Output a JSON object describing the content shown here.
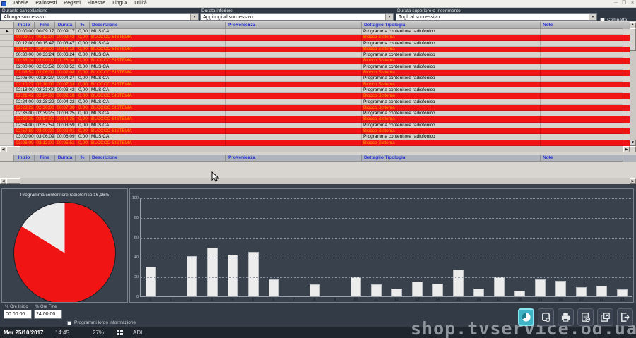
{
  "window": {
    "menu": [
      "Tabelle",
      "Palinsesti",
      "Registri",
      "Finestre",
      "Lingua",
      "Utilità"
    ],
    "controls": {
      "minimize": "─",
      "restore": "❐",
      "close": "✕"
    }
  },
  "toolbar": {
    "groups": [
      {
        "label": "Durante cancellazione",
        "value": "Allunga successivo"
      },
      {
        "label": "Durata inferiore",
        "value": "Aggiungi al successivo"
      },
      {
        "label": "Durata superiore o Inserimento",
        "value": "Togli al successivo"
      }
    ],
    "compatta_righe_label": "Compatta righe"
  },
  "main_table": {
    "headers": [
      "Inizio",
      "Fine",
      "Durata",
      "%",
      "Descrizione",
      "Provenienza",
      "Dettaglio Tipologia",
      "Note"
    ],
    "rows": [
      {
        "type": "musica",
        "inizio": "00:00:00",
        "fine": "00:09:17",
        "durata": "00:09:17",
        "pct": "0,00",
        "descrizione": "MUSICA",
        "provenienza": "",
        "dettaglio": "Programma contenitore radiofonico",
        "note": ""
      },
      {
        "type": "blocco",
        "inizio": "00:09:17",
        "fine": "00:12:00",
        "durata": "00:02:43",
        "pct": "0,00",
        "descrizione": "BLOCCO SISTEMA",
        "provenienza": "",
        "dettaglio": "Blocco Sistema",
        "note": ""
      },
      {
        "type": "musica",
        "inizio": "00:12:00",
        "fine": "00:15:47",
        "durata": "00:03:47",
        "pct": "0,00",
        "descrizione": "MUSICA",
        "provenienza": "",
        "dettaglio": "Programma contenitore radiofonico",
        "note": ""
      },
      {
        "type": "blocco",
        "inizio": "00:15:47",
        "fine": "00:30:00",
        "durata": "00:14:13",
        "pct": "0,00",
        "descrizione": "BLOCCO SISTEMA",
        "provenienza": "",
        "dettaglio": "Blocco Sistema",
        "note": ""
      },
      {
        "type": "musica",
        "inizio": "00:30:00",
        "fine": "00:33:24",
        "durata": "00:03:24",
        "pct": "0,00",
        "descrizione": "MUSICA",
        "provenienza": "",
        "dettaglio": "Programma contenitore radiofonico",
        "note": ""
      },
      {
        "type": "blocco",
        "inizio": "00:33:24",
        "fine": "02:00:00",
        "durata": "01:26:36",
        "pct": "0,00",
        "descrizione": "BLOCCO SISTEMA",
        "provenienza": "",
        "dettaglio": "Blocco Sistema",
        "note": ""
      },
      {
        "type": "musica",
        "inizio": "02:00:00",
        "fine": "02:03:52",
        "durata": "00:03:52",
        "pct": "0,00",
        "descrizione": "MUSICA",
        "provenienza": "",
        "dettaglio": "Programma contenitore radiofonico",
        "note": ""
      },
      {
        "type": "blocco",
        "inizio": "02:03:52",
        "fine": "02:06:00",
        "durata": "00:02:08",
        "pct": "0,00",
        "descrizione": "BLOCCO SISTEMA",
        "provenienza": "",
        "dettaglio": "Blocco Sistema",
        "note": ""
      },
      {
        "type": "musica",
        "inizio": "02:06:00",
        "fine": "02:10:27",
        "durata": "00:04:27",
        "pct": "0,00",
        "descrizione": "MUSICA",
        "provenienza": "",
        "dettaglio": "Programma contenitore radiofonico",
        "note": ""
      },
      {
        "type": "blocco",
        "inizio": "02:10:27",
        "fine": "02:18:00",
        "durata": "00:07:33",
        "pct": "0,00",
        "descrizione": "BLOCCO SISTEMA",
        "provenienza": "",
        "dettaglio": "Blocco Sistema",
        "note": ""
      },
      {
        "type": "musica",
        "inizio": "02:18:00",
        "fine": "02:21:42",
        "durata": "00:03:42",
        "pct": "0,00",
        "descrizione": "MUSICA",
        "provenienza": "",
        "dettaglio": "Programma contenitore radiofonico",
        "note": ""
      },
      {
        "type": "blocco",
        "inizio": "02:21:42",
        "fine": "02:24:00",
        "durata": "00:02:18",
        "pct": "0,00",
        "descrizione": "BLOCCO SISTEMA",
        "provenienza": "",
        "dettaglio": "Blocco Sistema",
        "note": ""
      },
      {
        "type": "musica",
        "inizio": "02:24:00",
        "fine": "02:28:22",
        "durata": "00:04:22",
        "pct": "0,00",
        "descrizione": "MUSICA",
        "provenienza": "",
        "dettaglio": "Programma contenitore radiofonico",
        "note": ""
      },
      {
        "type": "blocco",
        "inizio": "02:28:22",
        "fine": "02:36:00",
        "durata": "00:07:38",
        "pct": "0,00",
        "descrizione": "BLOCCO SISTEMA",
        "provenienza": "",
        "dettaglio": "Blocco Sistema",
        "note": ""
      },
      {
        "type": "musica",
        "inizio": "02:36:00",
        "fine": "02:39:25",
        "durata": "00:03:25",
        "pct": "0,00",
        "descrizione": "MUSICA",
        "provenienza": "",
        "dettaglio": "Programma contenitore radiofonico",
        "note": ""
      },
      {
        "type": "blocco",
        "inizio": "02:39:25",
        "fine": "02:54:00",
        "durata": "00:14:35",
        "pct": "0,00",
        "descrizione": "BLOCCO SISTEMA",
        "provenienza": "",
        "dettaglio": "Blocco Sistema",
        "note": ""
      },
      {
        "type": "musica",
        "inizio": "02:54:00",
        "fine": "02:57:59",
        "durata": "00:03:59",
        "pct": "0,00",
        "descrizione": "MUSICA",
        "provenienza": "",
        "dettaglio": "Programma contenitore radiofonico",
        "note": ""
      },
      {
        "type": "blocco",
        "inizio": "02:57:59",
        "fine": "03:00:00",
        "durata": "00:02:01",
        "pct": "0,00",
        "descrizione": "BLOCCO SISTEMA",
        "provenienza": "",
        "dettaglio": "Blocco Sistema",
        "note": ""
      },
      {
        "type": "musica",
        "inizio": "03:00:00",
        "fine": "03:06:09",
        "durata": "00:06:09",
        "pct": "0,00",
        "descrizione": "MUSICA",
        "provenienza": "",
        "dettaglio": "Programma contenitore radiofonico",
        "note": ""
      },
      {
        "type": "blocco",
        "inizio": "03:06:09",
        "fine": "03:12:00",
        "durata": "00:05:51",
        "pct": "0,00",
        "descrizione": "BLOCCO SISTEMA",
        "provenienza": "",
        "dettaglio": "Blocco Sistema",
        "note": ""
      }
    ]
  },
  "chart_data": [
    {
      "type": "pie",
      "title": "Programma contenitore radiofonico 16,16%",
      "slices": [
        {
          "label": "Blocco Sistema",
          "value": 83.84,
          "color": "#f01414"
        },
        {
          "label": "Programma contenitore radiofonico",
          "value": 16.16,
          "color": "#ececec"
        }
      ],
      "legend_position": "none"
    },
    {
      "type": "bar",
      "categories": [
        0,
        1,
        2,
        3,
        4,
        5,
        6,
        7,
        8,
        9,
        10,
        11,
        12,
        13,
        14,
        15,
        16,
        17,
        18,
        19,
        20,
        21,
        22,
        23
      ],
      "values": [
        30,
        0,
        41,
        49,
        42,
        45,
        17,
        0,
        12,
        0,
        20,
        12,
        8,
        15,
        13,
        27,
        8,
        20,
        6,
        17,
        16,
        9,
        11,
        7
      ],
      "xlabel": "",
      "ylabel": "",
      "ylim": [
        0,
        100
      ],
      "yticks": [
        0,
        20,
        40,
        60,
        80,
        100
      ],
      "grid": true,
      "bar_color": "#ececec"
    }
  ],
  "footer": {
    "ore_inizio_label": "% Ore Inizio",
    "ore_inizio_value": "00:00:00",
    "ore_fine_label": "% Ore Fine",
    "ore_fine_value": "24:00:00",
    "checkbox_label": "Programmi lordo informazione"
  },
  "status_bar": {
    "date": "Mer 25/10/2017",
    "time": "14:45",
    "percent": "27%",
    "mode": "ADI"
  },
  "watermark": "shop.tvservice.od.ua"
}
